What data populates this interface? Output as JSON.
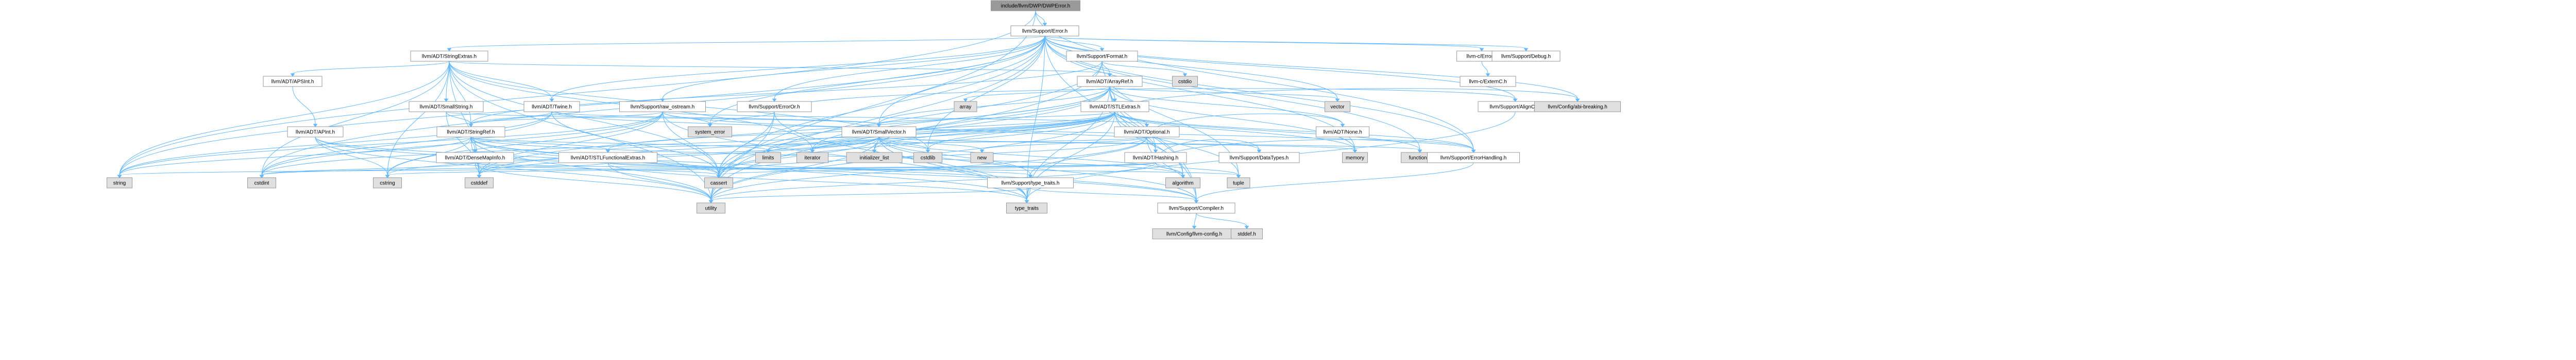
{
  "graph": {
    "nodes": [
      {
        "id": "root",
        "label": "include/llvm/DWP/DWPError.h",
        "kind": "root"
      },
      {
        "id": "error",
        "label": "llvm/Support/Error.h",
        "kind": "linked"
      },
      {
        "id": "stringextras",
        "label": "llvm/ADT/StringExtras.h",
        "kind": "linked"
      },
      {
        "id": "format",
        "label": "llvm/Support/Format.h",
        "kind": "linked"
      },
      {
        "id": "cerror",
        "label": "llvm-c/Error.h",
        "kind": "linked"
      },
      {
        "id": "debug",
        "label": "llvm/Support/Debug.h",
        "kind": "linked"
      },
      {
        "id": "apsint",
        "label": "llvm/ADT/APSInt.h",
        "kind": "linked"
      },
      {
        "id": "cstdio",
        "label": "cstdio",
        "kind": "external"
      },
      {
        "id": "arrayref",
        "label": "llvm/ADT/ArrayRef.h",
        "kind": "linked"
      },
      {
        "id": "externc",
        "label": "llvm-c/ExternC.h",
        "kind": "linked"
      },
      {
        "id": "smallstring",
        "label": "llvm/ADT/SmallString.h",
        "kind": "linked"
      },
      {
        "id": "twine",
        "label": "llvm/ADT/Twine.h",
        "kind": "linked"
      },
      {
        "id": "rawostream",
        "label": "llvm/Support/raw_ostream.h",
        "kind": "linked"
      },
      {
        "id": "erroror",
        "label": "llvm/Support/ErrorOr.h",
        "kind": "linked"
      },
      {
        "id": "array",
        "label": "array",
        "kind": "external"
      },
      {
        "id": "stlextras",
        "label": "llvm/ADT/STLExtras.h",
        "kind": "linked"
      },
      {
        "id": "vector",
        "label": "vector",
        "kind": "external"
      },
      {
        "id": "alignof",
        "label": "llvm/Support/AlignOf.h",
        "kind": "linked"
      },
      {
        "id": "abibreaking",
        "label": "llvm/Config/abi-breaking.h",
        "kind": "external"
      },
      {
        "id": "apint",
        "label": "llvm/ADT/APInt.h",
        "kind": "linked"
      },
      {
        "id": "stringref",
        "label": "llvm/ADT/StringRef.h",
        "kind": "linked"
      },
      {
        "id": "systemerror",
        "label": "system_error",
        "kind": "external"
      },
      {
        "id": "smallvector",
        "label": "llvm/ADT/SmallVector.h",
        "kind": "linked"
      },
      {
        "id": "optional",
        "label": "llvm/ADT/Optional.h",
        "kind": "linked"
      },
      {
        "id": "densemapinfo",
        "label": "llvm/ADT/DenseMapInfo.h",
        "kind": "linked"
      },
      {
        "id": "stlfunctionalextras",
        "label": "llvm/ADT/STLFunctionalExtras.h",
        "kind": "linked"
      },
      {
        "id": "hashing",
        "label": "llvm/ADT/Hashing.h",
        "kind": "linked"
      },
      {
        "id": "none",
        "label": "llvm/ADT/None.h",
        "kind": "linked"
      },
      {
        "id": "memory",
        "label": "memory",
        "kind": "external"
      },
      {
        "id": "functional",
        "label": "functional",
        "kind": "external"
      },
      {
        "id": "limits",
        "label": "limits",
        "kind": "external"
      },
      {
        "id": "iterator",
        "label": "iterator",
        "kind": "external"
      },
      {
        "id": "initializer_list",
        "label": "initializer_list",
        "kind": "external"
      },
      {
        "id": "cstdlib",
        "label": "cstdlib",
        "kind": "external"
      },
      {
        "id": "new",
        "label": "new",
        "kind": "external"
      },
      {
        "id": "errorhandling",
        "label": "llvm/Support/ErrorHandling.h",
        "kind": "linked"
      },
      {
        "id": "datatypes",
        "label": "llvm/Support/DataTypes.h",
        "kind": "linked"
      },
      {
        "id": "typetraits",
        "label": "llvm/Support/type_traits.h",
        "kind": "linked"
      },
      {
        "id": "tuple",
        "label": "tuple",
        "kind": "external"
      },
      {
        "id": "algorithm",
        "label": "algorithm",
        "kind": "external"
      },
      {
        "id": "string",
        "label": "string",
        "kind": "external"
      },
      {
        "id": "cstdint",
        "label": "cstdint",
        "kind": "external"
      },
      {
        "id": "cstring",
        "label": "cstring",
        "kind": "external"
      },
      {
        "id": "cstddef",
        "label": "cstddef",
        "kind": "external"
      },
      {
        "id": "cassert",
        "label": "cassert",
        "kind": "external"
      },
      {
        "id": "utility",
        "label": "utility",
        "kind": "external"
      },
      {
        "id": "compiler",
        "label": "llvm/Support/Compiler.h",
        "kind": "linked"
      },
      {
        "id": "typetraitsstd",
        "label": "type_traits",
        "kind": "external"
      },
      {
        "id": "llvmconfig",
        "label": "llvm/Config/llvm-config.h",
        "kind": "external"
      },
      {
        "id": "stddefh",
        "label": "stddef.h",
        "kind": "external"
      }
    ],
    "edges": [
      [
        "root",
        "error"
      ],
      [
        "root",
        "utility"
      ],
      [
        "root",
        "string"
      ],
      [
        "root",
        "errorhandling"
      ],
      [
        "error",
        "stringextras"
      ],
      [
        "error",
        "format"
      ],
      [
        "error",
        "cerror"
      ],
      [
        "error",
        "debug"
      ],
      [
        "error",
        "alignof"
      ],
      [
        "error",
        "abibreaking"
      ],
      [
        "error",
        "twine"
      ],
      [
        "error",
        "rawostream"
      ],
      [
        "error",
        "erroror"
      ],
      [
        "error",
        "smallvector"
      ],
      [
        "error",
        "memory"
      ],
      [
        "error",
        "functional"
      ],
      [
        "error",
        "cassert"
      ],
      [
        "error",
        "cstdint"
      ],
      [
        "error",
        "cstdlib"
      ],
      [
        "error",
        "string"
      ],
      [
        "error",
        "systemerror"
      ],
      [
        "error",
        "typetraitsstd"
      ],
      [
        "error",
        "utility"
      ],
      [
        "error",
        "vector"
      ],
      [
        "error",
        "errorhandling"
      ],
      [
        "error",
        "compiler"
      ],
      [
        "stringextras",
        "apsint"
      ],
      [
        "stringextras",
        "arrayref"
      ],
      [
        "stringextras",
        "smallstring"
      ],
      [
        "stringextras",
        "stringref"
      ],
      [
        "stringextras",
        "twine"
      ],
      [
        "stringextras",
        "cassert"
      ],
      [
        "stringextras",
        "cstddef"
      ],
      [
        "stringextras",
        "cstdint"
      ],
      [
        "stringextras",
        "cstdlib"
      ],
      [
        "stringextras",
        "cstring"
      ],
      [
        "stringextras",
        "iterator"
      ],
      [
        "stringextras",
        "string"
      ],
      [
        "stringextras",
        "utility"
      ],
      [
        "format",
        "cstdio"
      ],
      [
        "format",
        "arrayref"
      ],
      [
        "format",
        "stringref"
      ],
      [
        "format",
        "cassert"
      ],
      [
        "format",
        "tuple"
      ],
      [
        "format",
        "utility"
      ],
      [
        "cerror",
        "externc"
      ],
      [
        "apsint",
        "apint"
      ],
      [
        "apint",
        "compiler"
      ],
      [
        "apint",
        "cassert"
      ],
      [
        "apint",
        "climits"
      ],
      [
        "apint",
        "cstring"
      ],
      [
        "apint",
        "utility"
      ],
      [
        "arrayref",
        "hashing"
      ],
      [
        "arrayref",
        "none"
      ],
      [
        "arrayref",
        "smallvector"
      ],
      [
        "arrayref",
        "stlextras"
      ],
      [
        "arrayref",
        "compiler"
      ],
      [
        "arrayref",
        "algorithm"
      ],
      [
        "arrayref",
        "array"
      ],
      [
        "arrayref",
        "cassert"
      ],
      [
        "arrayref",
        "cstddef"
      ],
      [
        "arrayref",
        "initializer_list"
      ],
      [
        "arrayref",
        "iterator"
      ],
      [
        "arrayref",
        "memory"
      ],
      [
        "arrayref",
        "typetraitsstd"
      ],
      [
        "arrayref",
        "vector"
      ],
      [
        "smallstring",
        "smallvector"
      ],
      [
        "smallstring",
        "stringref"
      ],
      [
        "smallstring",
        "cstddef"
      ],
      [
        "twine",
        "smallvector"
      ],
      [
        "twine",
        "stringref"
      ],
      [
        "twine",
        "errorhandling"
      ],
      [
        "twine",
        "cassert"
      ],
      [
        "twine",
        "cstdint"
      ],
      [
        "twine",
        "string"
      ],
      [
        "rawostream",
        "stringref"
      ],
      [
        "rawostream",
        "datatypes"
      ],
      [
        "rawostream",
        "cassert"
      ],
      [
        "rawostream",
        "cstddef"
      ],
      [
        "rawostream",
        "cstdint"
      ],
      [
        "rawostream",
        "cstring"
      ],
      [
        "rawostream",
        "string"
      ],
      [
        "rawostream",
        "systemerror"
      ],
      [
        "rawostream",
        "typetraitsstd"
      ],
      [
        "rawostream",
        "optional"
      ],
      [
        "erroror",
        "alignof"
      ],
      [
        "erroror",
        "cassert"
      ],
      [
        "erroror",
        "systemerror"
      ],
      [
        "erroror",
        "typetraitsstd"
      ],
      [
        "erroror",
        "utility"
      ],
      [
        "stlextras",
        "hashing"
      ],
      [
        "stlextras",
        "optional"
      ],
      [
        "stlextras",
        "stlfunctionalextras"
      ],
      [
        "stlextras",
        "iterator"
      ],
      [
        "stlextras",
        "abibreaking"
      ],
      [
        "stlextras",
        "errorhandling"
      ],
      [
        "stlextras",
        "algorithm"
      ],
      [
        "stlextras",
        "cassert"
      ],
      [
        "stlextras",
        "cstddef"
      ],
      [
        "stlextras",
        "cstdint"
      ],
      [
        "stlextras",
        "cstdlib"
      ],
      [
        "stlextras",
        "functional"
      ],
      [
        "stlextras",
        "initializer_list"
      ],
      [
        "stlextras",
        "limits"
      ],
      [
        "stlextras",
        "memory"
      ],
      [
        "stlextras",
        "tuple"
      ],
      [
        "stlextras",
        "typetraitsstd"
      ],
      [
        "stlextras",
        "utility"
      ],
      [
        "stlextras",
        "smallvector"
      ],
      [
        "stringref",
        "stlfunctionalextras"
      ],
      [
        "stringref",
        "densemapinfo"
      ],
      [
        "stringref",
        "compiler"
      ],
      [
        "stringref",
        "algorithm"
      ],
      [
        "stringref",
        "cassert"
      ],
      [
        "stringref",
        "cstddef"
      ],
      [
        "stringref",
        "cstring"
      ],
      [
        "stringref",
        "limits"
      ],
      [
        "stringref",
        "string"
      ],
      [
        "stringref",
        "typetraitsstd"
      ],
      [
        "stringref",
        "utility"
      ],
      [
        "smallvector",
        "compiler"
      ],
      [
        "smallvector",
        "typetraits"
      ],
      [
        "smallvector",
        "algorithm"
      ],
      [
        "smallvector",
        "cassert"
      ],
      [
        "smallvector",
        "cstddef"
      ],
      [
        "smallvector",
        "cstdlib"
      ],
      [
        "smallvector",
        "cstring"
      ],
      [
        "smallvector",
        "functional"
      ],
      [
        "smallvector",
        "initializer_list"
      ],
      [
        "smallvector",
        "iterator"
      ],
      [
        "smallvector",
        "limits"
      ],
      [
        "smallvector",
        "memory"
      ],
      [
        "smallvector",
        "new"
      ],
      [
        "smallvector",
        "typetraitsstd"
      ],
      [
        "smallvector",
        "utility"
      ],
      [
        "optional",
        "hashing"
      ],
      [
        "optional",
        "none"
      ],
      [
        "optional",
        "stlfunctionalextras"
      ],
      [
        "optional",
        "compiler"
      ],
      [
        "optional",
        "typetraits"
      ],
      [
        "optional",
        "cassert"
      ],
      [
        "optional",
        "new"
      ],
      [
        "optional",
        "utility"
      ],
      [
        "densemapinfo",
        "cassert"
      ],
      [
        "densemapinfo",
        "cstddef"
      ],
      [
        "densemapinfo",
        "cstdint"
      ],
      [
        "densemapinfo",
        "tuple"
      ],
      [
        "densemapinfo",
        "utility"
      ],
      [
        "stlfunctionalextras",
        "typetraits"
      ],
      [
        "stlfunctionalextras",
        "cstdint"
      ],
      [
        "stlfunctionalextras",
        "typetraitsstd"
      ],
      [
        "stlfunctionalextras",
        "utility"
      ],
      [
        "hashing",
        "errorhandling"
      ],
      [
        "hashing",
        "datatypes"
      ],
      [
        "hashing",
        "algorithm"
      ],
      [
        "hashing",
        "cassert"
      ],
      [
        "hashing",
        "cstring"
      ],
      [
        "hashing",
        "string"
      ],
      [
        "hashing",
        "tuple"
      ],
      [
        "hashing",
        "utility"
      ],
      [
        "errorhandling",
        "compiler"
      ],
      [
        "typetraits",
        "compiler"
      ],
      [
        "typetraits",
        "typetraitsstd"
      ],
      [
        "typetraits",
        "utility"
      ],
      [
        "compiler",
        "llvmconfig"
      ],
      [
        "compiler",
        "stddefh"
      ],
      [
        "alignof",
        "typetraitsstd"
      ]
    ]
  },
  "colors": {
    "root_fill": "#999999",
    "linked_fill": "#ffffff",
    "external_fill": "#e0e0e0",
    "node_stroke": "#999999",
    "edge": "#63b8ff"
  }
}
